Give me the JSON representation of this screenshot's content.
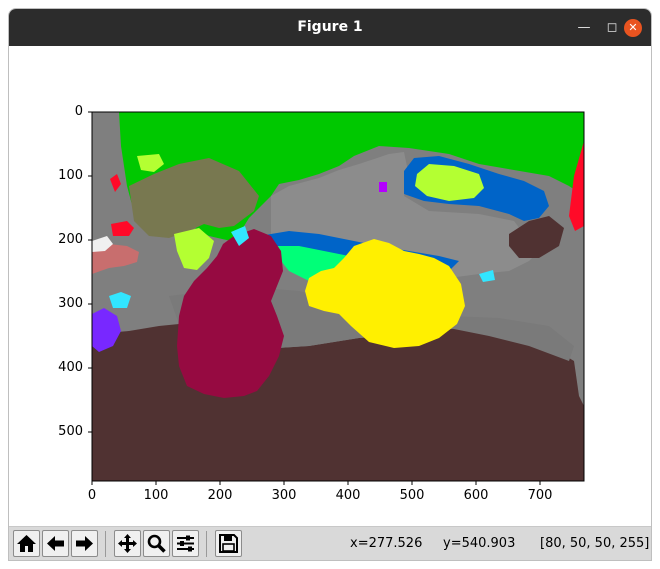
{
  "window": {
    "title": "Figure 1"
  },
  "axes": {
    "x_ticks": [
      "0",
      "100",
      "200",
      "300",
      "400",
      "500",
      "600",
      "700"
    ],
    "y_ticks": [
      "0",
      "100",
      "200",
      "300",
      "400",
      "500"
    ]
  },
  "image_colors": {
    "sky_green": "#00c800",
    "background_gray": "#7f7f7f",
    "dog_crimson": "#960a41",
    "ground_brown": "#503232",
    "blob_yellow": "#fff000",
    "car_blue": "#0064c8",
    "lime": "#b4ff32",
    "olive": "#787850",
    "red": "#ff0a28",
    "cyan": "#32e6ff",
    "purple": "#7828ff",
    "pink_brown": "#c86e6e",
    "spring_green": "#00ff78"
  },
  "toolbar": {
    "buttons": [
      "home-icon",
      "back-icon",
      "forward-icon",
      "pan-icon",
      "zoom-icon",
      "configure-icon",
      "save-icon"
    ]
  },
  "status": {
    "x": "x=277.526",
    "y": "y=540.903",
    "pixel": "[80, 50, 50, 255]"
  }
}
